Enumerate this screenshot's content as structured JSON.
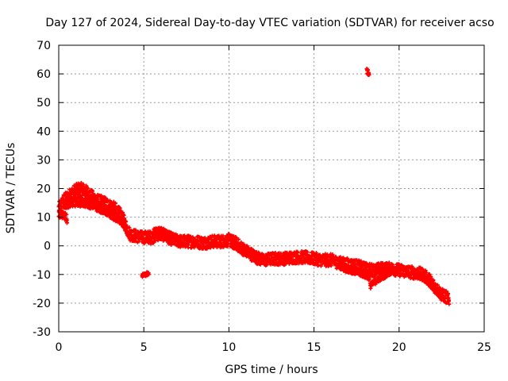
{
  "chart_data": {
    "type": "scatter",
    "title": "Day 127 of 2024, Sidereal Day-to-day VTEC variation (SDTVAR) for receiver acso",
    "xlabel": "GPS time / hours",
    "ylabel": "SDTVAR / TECUs",
    "xlim": [
      0,
      25
    ],
    "ylim": [
      -30,
      70
    ],
    "xticks": [
      0,
      5,
      10,
      15,
      20,
      25
    ],
    "yticks": [
      -30,
      -20,
      -10,
      0,
      10,
      20,
      30,
      40,
      50,
      60,
      70
    ],
    "grid": true,
    "series": [
      {
        "name": "SDTVAR",
        "color": "#ff0000",
        "bands": [
          {
            "x": [
              0.0,
              0.3,
              0.6,
              0.9,
              1.2,
              1.5,
              1.8,
              2.1,
              2.4,
              2.7,
              3.0,
              3.3,
              3.6,
              3.8,
              4.0,
              4.2,
              4.5,
              4.8,
              5.2,
              5.5,
              5.8,
              6.1,
              6.4,
              6.8,
              7.2,
              7.6,
              8.0,
              8.5,
              9.0,
              9.5,
              10.0,
              10.4,
              10.8,
              11.2,
              11.6,
              12.0,
              12.6,
              13.2,
              13.8,
              14.4,
              15.0,
              15.5,
              16.0,
              16.5,
              17.0,
              17.5,
              18.0,
              18.5,
              19.0,
              19.5,
              20.0,
              20.5,
              21.0,
              21.4,
              21.8,
              22.2,
              22.5,
              22.8,
              22.95
            ],
            "y": [
              13,
              16,
              17.5,
              19,
              20,
              19.5,
              18,
              16.5,
              15.5,
              15,
              14,
              13,
              11,
              9,
              6,
              4,
              3.5,
              3,
              3,
              3,
              4,
              4,
              3,
              2,
              1.5,
              1.5,
              1.5,
              1,
              1.5,
              1.5,
              2,
              1,
              -1,
              -2.5,
              -4,
              -5,
              -4.5,
              -4.5,
              -4,
              -4,
              -4.5,
              -5,
              -5,
              -6,
              -6.5,
              -7,
              -8,
              -8.5,
              -8,
              -8,
              -8.5,
              -9,
              -9.5,
              -10,
              -12,
              -15,
              -17,
              -18,
              -19.5
            ],
            "spread": 2.2
          },
          {
            "x": [
              0.3,
              0.7,
              1.1,
              1.5,
              1.9,
              2.3,
              2.7,
              3.1,
              3.4
            ],
            "y": [
              14.5,
              15,
              15.5,
              15,
              14.5,
              13.5,
              12.5,
              11,
              10
            ],
            "spread": 1.6
          },
          {
            "x": [
              0.0,
              0.2,
              0.4,
              0.5
            ],
            "y": [
              11,
              11,
              10,
              9
            ],
            "spread": 1.5
          },
          {
            "x": [
              2.1,
              2.6,
              3.1,
              3.6,
              3.9
            ],
            "y": [
              15,
              13,
              11,
              9,
              7
            ],
            "spread": 1.4
          },
          {
            "x": [
              5.6,
              6.0,
              6.3,
              6.7
            ],
            "y": [
              4.5,
              5,
              4,
              3
            ],
            "spread": 1.5
          },
          {
            "x": [
              10.2,
              10.8,
              11.4,
              11.9
            ],
            "y": [
              0.5,
              -1.5,
              -3,
              -4.5
            ],
            "spread": 1.3
          },
          {
            "x": [
              16.5,
              17.0,
              17.5,
              18.0,
              18.3
            ],
            "y": [
              -7,
              -8,
              -9,
              -10,
              -11
            ],
            "spread": 1.3
          },
          {
            "x": [
              18.3,
              18.7,
              19.1,
              19.5,
              19.9
            ],
            "y": [
              -14,
              -12,
              -10.5,
              -9,
              -8.5
            ],
            "spread": 1.0
          },
          {
            "x": [
              21.0,
              21.4,
              21.8,
              22.1
            ],
            "y": [
              -10,
              -11,
              -13,
              -15
            ],
            "spread": 1.2
          },
          {
            "x": [
              4.9,
              5.1,
              5.3
            ],
            "y": [
              -10.5,
              -10,
              -9.5
            ],
            "spread": 0.7
          },
          {
            "x": [
              18.1,
              18.25
            ],
            "y": [
              61,
              60
            ],
            "spread": 0.9
          }
        ]
      }
    ]
  }
}
